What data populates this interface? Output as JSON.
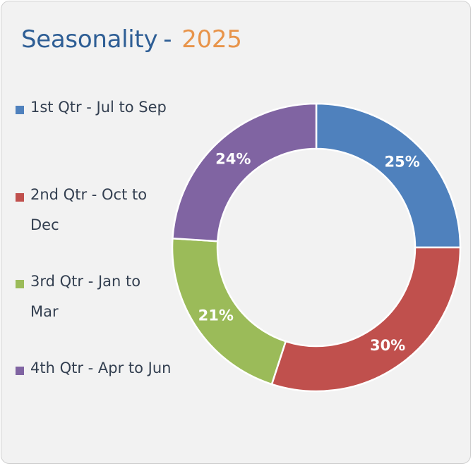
{
  "title": {
    "main": "Seasonality",
    "separator": "-",
    "year": "2025"
  },
  "colors": {
    "q1": "#4f81bd",
    "q2": "#c0504d",
    "q3": "#9bbb59",
    "q4": "#8064a2",
    "title": "#2e5e95",
    "year": "#e8944a"
  },
  "legend": [
    {
      "label": "1st Qtr - Jul to Sep",
      "color": "#4f81bd"
    },
    {
      "label": "2nd Qtr - Oct to Dec",
      "color": "#c0504d"
    },
    {
      "label": "3rd Qtr - Jan to Mar",
      "color": "#9bbb59"
    },
    {
      "label": "4th Qtr - Apr to Jun",
      "color": "#8064a2"
    }
  ],
  "chart_data": {
    "type": "pie",
    "variant": "donut",
    "title": "Seasonality - 2025",
    "categories": [
      "1st Qtr - Jul to Sep",
      "2nd Qtr - Oct to Dec",
      "3rd Qtr - Jan to Mar",
      "4th Qtr - Apr to Jun"
    ],
    "values": [
      25,
      30,
      21,
      24
    ],
    "labels": [
      "25%",
      "30%",
      "21%",
      "24%"
    ],
    "colors": [
      "#4f81bd",
      "#c0504d",
      "#9bbb59",
      "#8064a2"
    ],
    "legend_position": "left"
  }
}
